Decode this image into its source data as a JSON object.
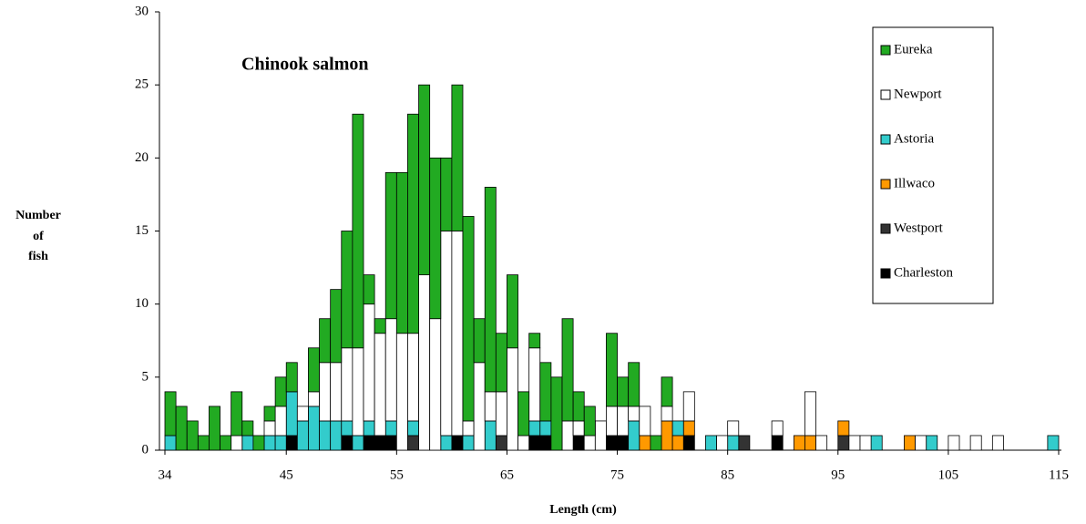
{
  "chart_data": {
    "type": "histogram",
    "title": "Chinook salmon",
    "xlabel": "Length (cm)",
    "ylabel": [
      "Number",
      "of",
      "fish"
    ],
    "bins": [
      34,
      35,
      36,
      37,
      38,
      39,
      40,
      41,
      42,
      43,
      44,
      45,
      46,
      47,
      48,
      49,
      50,
      51,
      52,
      53,
      54,
      55,
      56,
      57,
      58,
      59,
      60,
      61,
      62,
      63,
      64,
      65,
      66,
      67,
      68,
      69,
      70,
      71,
      72,
      73,
      74,
      75,
      76,
      77,
      78,
      79,
      80,
      81,
      82,
      83,
      84,
      85,
      86,
      87,
      88,
      89,
      90,
      91,
      92,
      93,
      94,
      95,
      96,
      97,
      98,
      99,
      100,
      101,
      102,
      103,
      104,
      105,
      106,
      107,
      108,
      109,
      110,
      111,
      112,
      113,
      114,
      115
    ],
    "series": [
      {
        "name": "Eureka",
        "color": "#22aa22",
        "values": [
          3,
          3,
          2,
          1,
          3,
          1,
          3,
          1,
          1,
          1,
          2,
          2,
          0,
          3,
          3,
          5,
          8,
          16,
          2,
          1,
          10,
          11,
          15,
          13,
          11,
          5,
          10,
          14,
          3,
          14,
          4,
          5,
          3,
          1,
          4,
          5,
          7,
          2,
          2,
          0,
          5,
          2,
          3,
          0,
          1,
          2,
          0,
          0,
          0,
          0,
          0,
          0,
          0,
          0,
          0,
          0,
          0,
          0,
          0,
          0,
          0,
          0,
          0,
          0,
          0,
          0,
          0,
          0,
          0,
          0,
          0,
          0,
          0,
          0,
          0,
          0,
          0,
          0,
          0,
          0,
          0
        ]
      },
      {
        "name": "Newport",
        "color": "#ffffff",
        "values": [
          0,
          0,
          0,
          0,
          0,
          0,
          1,
          0,
          0,
          1,
          2,
          0,
          1,
          1,
          4,
          4,
          5,
          6,
          8,
          7,
          7,
          8,
          6,
          12,
          9,
          14,
          14,
          1,
          6,
          2,
          3,
          7,
          1,
          5,
          0,
          0,
          2,
          1,
          1,
          2,
          2,
          2,
          1,
          2,
          0,
          1,
          0,
          2,
          0,
          0,
          1,
          1,
          0,
          0,
          0,
          1,
          0,
          0,
          3,
          1,
          0,
          0,
          1,
          1,
          0,
          0,
          0,
          0,
          1,
          0,
          0,
          1,
          0,
          1,
          0,
          1,
          0,
          0,
          0,
          0,
          0
        ]
      },
      {
        "name": "Astoria",
        "color": "#33cccc",
        "values": [
          1,
          0,
          0,
          0,
          0,
          0,
          0,
          1,
          0,
          1,
          1,
          3,
          2,
          3,
          2,
          2,
          1,
          1,
          1,
          0,
          1,
          0,
          1,
          0,
          0,
          1,
          0,
          1,
          0,
          2,
          0,
          0,
          0,
          1,
          1,
          0,
          0,
          0,
          0,
          0,
          0,
          0,
          2,
          0,
          0,
          0,
          1,
          0,
          0,
          1,
          0,
          1,
          0,
          0,
          0,
          0,
          0,
          0,
          0,
          0,
          0,
          0,
          0,
          0,
          1,
          0,
          0,
          0,
          0,
          1,
          0,
          0,
          0,
          0,
          0,
          0,
          0,
          0,
          0,
          0,
          1
        ]
      },
      {
        "name": "Illwaco",
        "color": "#ff9900",
        "values": [
          0,
          0,
          0,
          0,
          0,
          0,
          0,
          0,
          0,
          0,
          0,
          0,
          0,
          0,
          0,
          0,
          0,
          0,
          0,
          0,
          0,
          0,
          0,
          0,
          0,
          0,
          0,
          0,
          0,
          0,
          0,
          0,
          0,
          0,
          0,
          0,
          0,
          0,
          0,
          0,
          0,
          0,
          0,
          1,
          0,
          2,
          1,
          1,
          0,
          0,
          0,
          0,
          0,
          0,
          0,
          0,
          0,
          1,
          1,
          0,
          0,
          1,
          0,
          0,
          0,
          0,
          0,
          1,
          0,
          0,
          0,
          0,
          0,
          0,
          0,
          0,
          0,
          0,
          0,
          0,
          0
        ]
      },
      {
        "name": "Westport",
        "color": "#333333",
        "values": [
          0,
          0,
          0,
          0,
          0,
          0,
          0,
          0,
          0,
          0,
          0,
          0,
          0,
          0,
          0,
          0,
          0,
          0,
          0,
          0,
          0,
          0,
          1,
          0,
          0,
          0,
          0,
          0,
          0,
          0,
          1,
          0,
          0,
          0,
          0,
          0,
          0,
          0,
          0,
          0,
          0,
          0,
          0,
          0,
          0,
          0,
          0,
          0,
          0,
          0,
          0,
          0,
          1,
          0,
          0,
          0,
          0,
          0,
          0,
          0,
          0,
          1,
          0,
          0,
          0,
          0,
          0,
          0,
          0,
          0,
          0,
          0,
          0,
          0,
          0,
          0,
          0,
          0,
          0,
          0,
          0
        ]
      },
      {
        "name": "Charleston",
        "color": "#000000",
        "values": [
          0,
          0,
          0,
          0,
          0,
          0,
          0,
          0,
          0,
          0,
          0,
          1,
          0,
          0,
          0,
          0,
          1,
          0,
          1,
          1,
          1,
          0,
          0,
          0,
          0,
          0,
          1,
          0,
          0,
          0,
          0,
          0,
          0,
          1,
          1,
          0,
          0,
          1,
          0,
          0,
          1,
          1,
          0,
          0,
          0,
          0,
          0,
          1,
          0,
          0,
          0,
          0,
          0,
          0,
          0,
          1,
          0,
          0,
          0,
          0,
          0,
          0,
          0,
          0,
          0,
          0,
          0,
          0,
          0,
          0,
          0,
          0,
          0,
          0,
          0,
          0,
          0,
          0,
          0,
          0,
          0
        ]
      }
    ],
    "xlim": [
      34,
      115
    ],
    "xticks": [
      34,
      45,
      55,
      65,
      75,
      85,
      95,
      105,
      115
    ],
    "ylim": [
      0,
      30
    ],
    "yticks": [
      0,
      5,
      10,
      15,
      20,
      25,
      30
    ]
  }
}
